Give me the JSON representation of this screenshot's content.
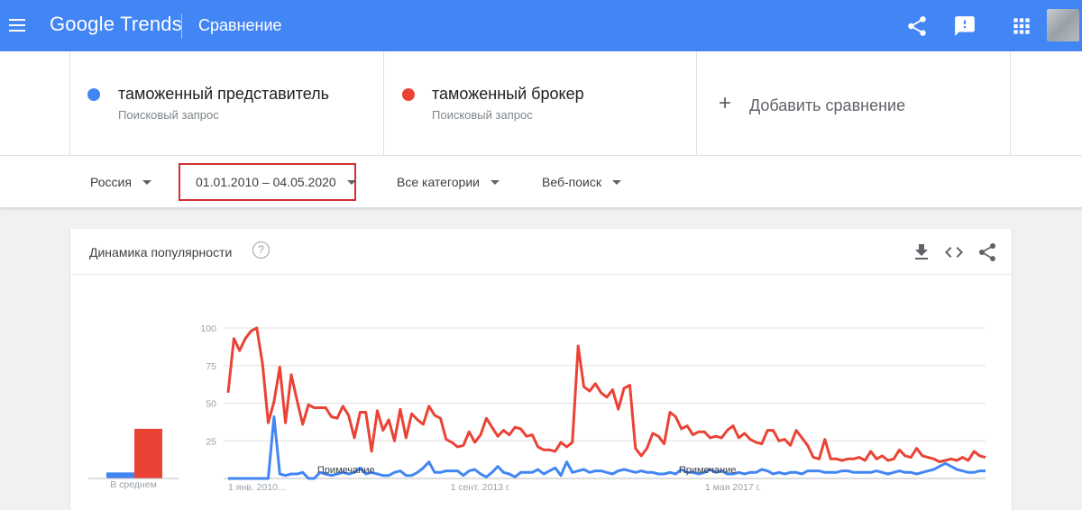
{
  "header": {
    "logo_google": "Google",
    "logo_trends": "Trends",
    "title": "Сравнение"
  },
  "terms": [
    {
      "name": "таможенный представитель",
      "type": "Поисковый запрос",
      "color": "#4285f4"
    },
    {
      "name": "таможенный брокер",
      "type": "Поисковый запрос",
      "color": "#ea4335"
    }
  ],
  "add_comparison": "Добавить сравнение",
  "filters": {
    "region": "Россия",
    "date_range": "01.01.2010 – 04.05.2020",
    "category": "Все категории",
    "search_type": "Веб-поиск"
  },
  "card": {
    "title": "Динамика популярности",
    "help": "?",
    "average_label": "В среднем",
    "note_label": "Примечание"
  },
  "icons": [
    "menu-icon",
    "share-icon",
    "feedback-icon",
    "apps-icon",
    "add-icon",
    "dropdown-icon",
    "help-icon",
    "download-icon",
    "embed-icon",
    "share-icon"
  ],
  "chart_data": {
    "type": "line",
    "ylim": [
      0,
      100
    ],
    "yticks": [
      100,
      75,
      50,
      25
    ],
    "xtick_labels": [
      "1 янв. 2010...",
      "1 сент. 2013 г.",
      "1 мая 2017 г."
    ],
    "xtick_months": [
      0,
      44,
      88
    ],
    "averages": [
      {
        "name": "таможенный представитель",
        "value": 4,
        "color": "#4285f4"
      },
      {
        "name": "таможенный брокер",
        "value": 33,
        "color": "#ea4335"
      }
    ],
    "note_months": [
      8,
      71
    ],
    "series": [
      {
        "name": "таможенный брокер",
        "color": "#ea4335",
        "values": [
          57,
          93,
          85,
          93,
          98,
          100,
          76,
          37,
          51,
          74,
          37,
          69,
          52,
          36,
          49,
          47,
          47,
          47,
          41,
          40,
          48,
          42,
          27,
          44,
          44,
          18,
          45,
          32,
          39,
          25,
          46,
          27,
          43,
          39,
          36,
          48,
          42,
          40,
          26,
          24,
          21,
          22,
          31,
          24,
          29,
          40,
          34,
          28,
          32,
          29,
          34,
          33,
          28,
          29,
          21,
          19,
          19,
          18,
          24,
          21,
          24,
          88,
          61,
          58,
          63,
          57,
          54,
          59,
          46,
          60,
          62,
          20,
          15,
          20,
          30,
          28,
          23,
          44,
          41,
          33,
          35,
          29,
          31,
          31,
          27,
          28,
          27,
          32,
          35,
          27,
          30,
          26,
          24,
          23,
          32,
          32,
          25,
          26,
          22,
          32,
          27,
          22,
          14,
          13,
          26,
          13,
          13,
          12,
          13,
          13,
          14,
          12,
          18,
          13,
          15,
          12,
          13,
          19,
          15,
          14,
          20,
          15,
          14,
          13,
          11,
          12,
          13,
          12,
          14,
          12,
          18,
          15,
          14
        ],
        "values_note": ""
      },
      {
        "name": "таможенный представитель",
        "values": [
          0,
          0,
          0,
          0,
          0,
          0,
          0,
          0,
          41,
          3,
          2,
          3,
          3,
          4,
          0,
          0,
          4,
          3,
          2,
          3,
          4,
          3,
          4,
          7,
          3,
          4,
          3,
          2,
          2,
          4,
          5,
          2,
          2,
          4,
          7,
          11,
          4,
          4,
          5,
          5,
          5,
          2,
          5,
          6,
          3,
          1,
          4,
          8,
          4,
          3,
          1,
          4,
          4,
          4,
          6,
          3,
          5,
          7,
          2,
          11,
          4,
          5,
          6,
          4,
          5,
          5,
          4,
          3,
          5,
          6,
          5,
          4,
          5,
          4,
          4,
          3,
          3,
          4,
          3,
          6,
          4,
          4,
          3,
          4,
          6,
          4,
          5,
          3,
          3,
          4,
          3,
          4,
          4,
          6,
          5,
          3,
          4,
          3,
          4,
          4,
          3,
          5,
          5,
          5,
          4,
          4,
          4,
          5,
          5,
          4,
          4,
          4,
          4,
          5,
          4,
          3,
          4,
          5,
          4,
          4,
          3,
          4,
          5,
          6,
          8,
          10,
          8,
          6,
          5,
          4,
          4,
          5,
          5
        ]
      }
    ]
  }
}
